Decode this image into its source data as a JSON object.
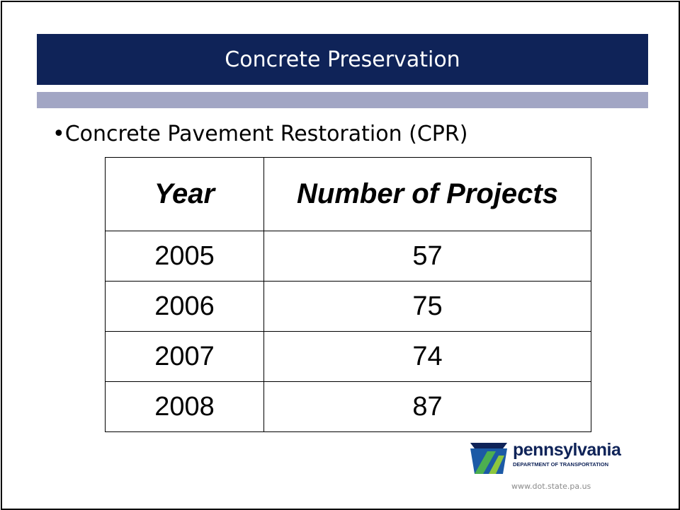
{
  "header": {
    "title": "Concrete Preservation"
  },
  "bullet": "Concrete Pavement Restoration (CPR)",
  "table": {
    "columns": [
      "Year",
      "Number of Projects"
    ],
    "rows": [
      [
        "2005",
        "57"
      ],
      [
        "2006",
        "75"
      ],
      [
        "2007",
        "74"
      ],
      [
        "2008",
        "87"
      ]
    ]
  },
  "logo": {
    "name": "pennsylvania",
    "department": "DEPARTMENT OF TRANSPORTATION",
    "url": "www.dot.state.pa.us"
  }
}
